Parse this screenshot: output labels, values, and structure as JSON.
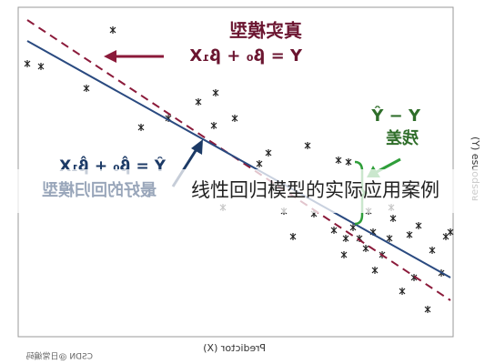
{
  "diagram": {
    "true_model": {
      "label": "真实模型",
      "equation": "Y = β₀ + β₁X"
    },
    "fitted_model": {
      "label": "最好的回归模型",
      "equation": "Ŷ = β̂₀ + β̂₁X"
    },
    "residual": {
      "equation": "Y − Ŷ",
      "label": "残差"
    },
    "x_axis_label": "Predictor (X)",
    "y_axis_label": "(Y) esuodsəᴚ",
    "caption": "线性回归模型的实际应用案例",
    "watermark": "CSDN @日常编码"
  }
}
